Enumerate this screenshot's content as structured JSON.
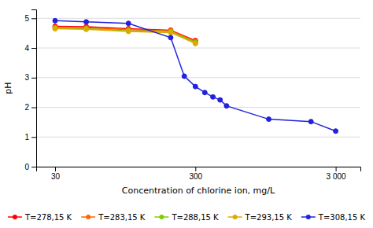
{
  "chart_data": {
    "type": "line",
    "xlabel": "Concentration of chlorine ion, mg/L",
    "ylabel": "pH",
    "log": "x",
    "xlim": [
      22,
      4500
    ],
    "xticks": [
      30,
      300,
      {
        "value": 3000,
        "label": "3 000"
      }
    ],
    "ylim": [
      0,
      5.3
    ],
    "yticks": [
      0,
      1,
      2,
      3,
      4,
      5
    ],
    "grid": true,
    "legend": "bottom",
    "marker": "circle",
    "line_style": "solid",
    "series": [
      {
        "name": "T=278,15 K",
        "color": "#FF0000",
        "x": [
          30,
          50,
          100,
          200,
          300
        ],
        "values": [
          4.73,
          4.72,
          4.65,
          4.6,
          4.25
        ]
      },
      {
        "name": "T=283,15 K",
        "color": "#FF6600",
        "x": [
          30,
          50,
          100,
          200,
          300
        ],
        "values": [
          4.69,
          4.68,
          4.62,
          4.58,
          4.22
        ]
      },
      {
        "name": "T=288,15 K",
        "color": "#80CC00",
        "x": [
          30,
          50,
          100,
          200,
          300
        ],
        "values": [
          4.67,
          4.65,
          4.58,
          4.55,
          4.18
        ]
      },
      {
        "name": "T=293,15 K",
        "color": "#DDAA00",
        "x": [
          30,
          50,
          100,
          200,
          300
        ],
        "values": [
          4.65,
          4.63,
          4.56,
          4.52,
          4.15
        ]
      },
      {
        "name": "T=308,15 K",
        "color": "#2222DD",
        "x": [
          30,
          50,
          100,
          200,
          250,
          300,
          350,
          400,
          450,
          500,
          1000,
          2000,
          3000
        ],
        "values": [
          4.92,
          4.88,
          4.83,
          4.35,
          3.05,
          2.7,
          2.5,
          2.35,
          2.25,
          2.05,
          1.6,
          1.52,
          1.2
        ]
      }
    ]
  }
}
